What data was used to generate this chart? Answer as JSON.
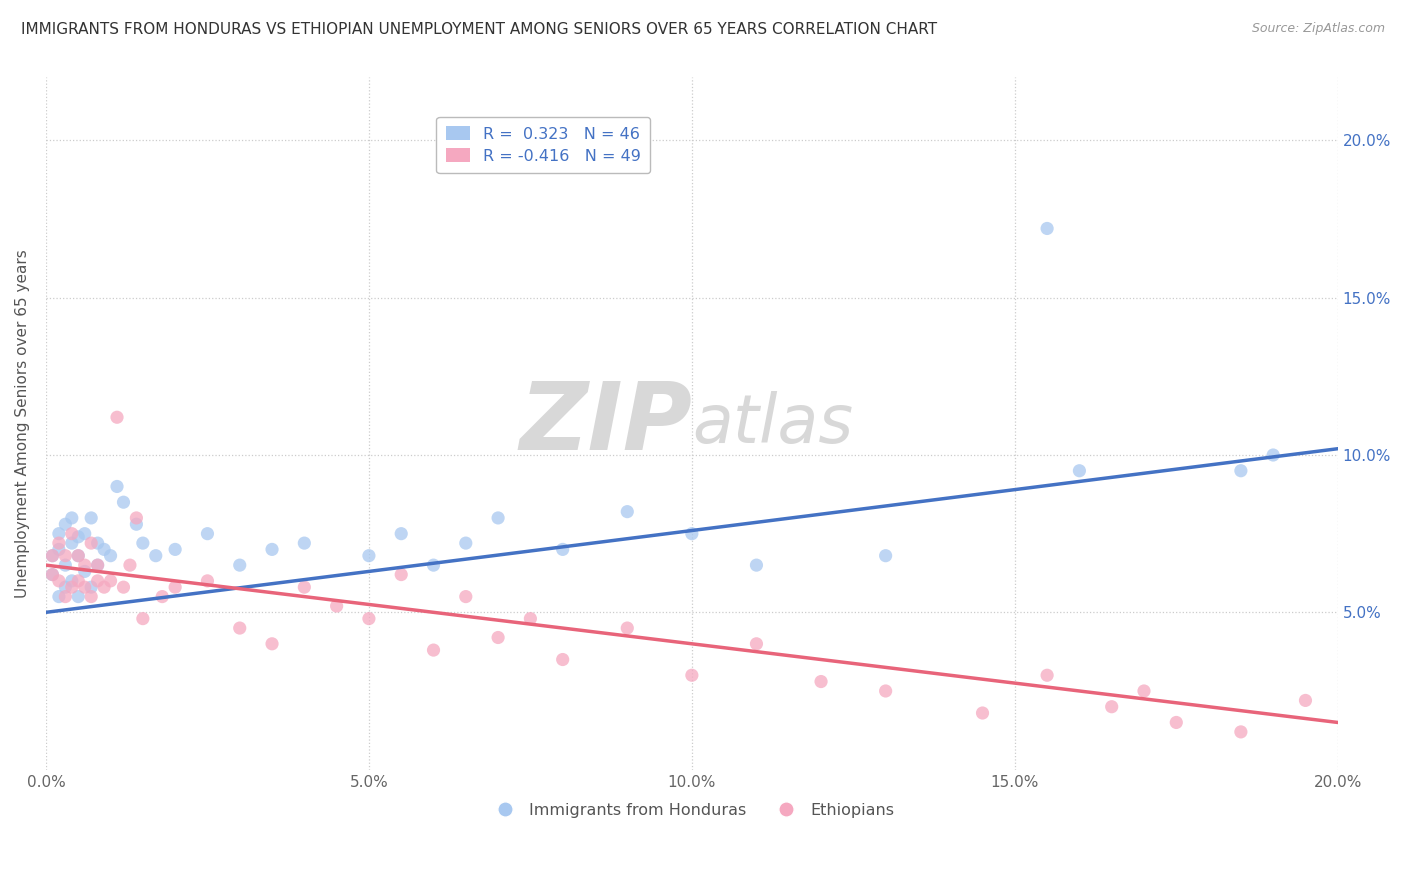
{
  "title": "IMMIGRANTS FROM HONDURAS VS ETHIOPIAN UNEMPLOYMENT AMONG SENIORS OVER 65 YEARS CORRELATION CHART",
  "source": "Source: ZipAtlas.com",
  "ylabel": "Unemployment Among Seniors over 65 years",
  "xlabel": "",
  "blue_label": "Immigrants from Honduras",
  "pink_label": "Ethiopians",
  "blue_R": 0.323,
  "blue_N": 46,
  "pink_R": -0.416,
  "pink_N": 49,
  "blue_color": "#a8c8f0",
  "pink_color": "#f5a8c0",
  "blue_line_color": "#4472c4",
  "pink_line_color": "#e8647a",
  "xmin": 0.0,
  "xmax": 0.2,
  "ymin": 0.0,
  "ymax": 0.22,
  "blue_x": [
    0.001,
    0.001,
    0.002,
    0.002,
    0.002,
    0.003,
    0.003,
    0.003,
    0.004,
    0.004,
    0.004,
    0.005,
    0.005,
    0.005,
    0.006,
    0.006,
    0.007,
    0.007,
    0.008,
    0.008,
    0.009,
    0.01,
    0.011,
    0.012,
    0.014,
    0.015,
    0.017,
    0.02,
    0.025,
    0.03,
    0.035,
    0.04,
    0.05,
    0.055,
    0.06,
    0.065,
    0.07,
    0.08,
    0.09,
    0.1,
    0.11,
    0.13,
    0.155,
    0.16,
    0.185,
    0.19
  ],
  "blue_y": [
    0.062,
    0.068,
    0.055,
    0.07,
    0.075,
    0.058,
    0.065,
    0.078,
    0.06,
    0.072,
    0.08,
    0.055,
    0.068,
    0.074,
    0.063,
    0.075,
    0.058,
    0.08,
    0.065,
    0.072,
    0.07,
    0.068,
    0.09,
    0.085,
    0.078,
    0.072,
    0.068,
    0.07,
    0.075,
    0.065,
    0.07,
    0.072,
    0.068,
    0.075,
    0.065,
    0.072,
    0.08,
    0.07,
    0.082,
    0.075,
    0.065,
    0.068,
    0.172,
    0.095,
    0.095,
    0.1
  ],
  "pink_x": [
    0.001,
    0.001,
    0.002,
    0.002,
    0.003,
    0.003,
    0.004,
    0.004,
    0.005,
    0.005,
    0.006,
    0.006,
    0.007,
    0.007,
    0.008,
    0.008,
    0.009,
    0.01,
    0.011,
    0.012,
    0.013,
    0.014,
    0.015,
    0.018,
    0.02,
    0.025,
    0.03,
    0.035,
    0.04,
    0.045,
    0.05,
    0.055,
    0.06,
    0.065,
    0.07,
    0.075,
    0.08,
    0.09,
    0.1,
    0.11,
    0.12,
    0.13,
    0.145,
    0.155,
    0.165,
    0.17,
    0.175,
    0.185,
    0.195
  ],
  "pink_y": [
    0.062,
    0.068,
    0.06,
    0.072,
    0.055,
    0.068,
    0.058,
    0.075,
    0.06,
    0.068,
    0.058,
    0.065,
    0.055,
    0.072,
    0.06,
    0.065,
    0.058,
    0.06,
    0.112,
    0.058,
    0.065,
    0.08,
    0.048,
    0.055,
    0.058,
    0.06,
    0.045,
    0.04,
    0.058,
    0.052,
    0.048,
    0.062,
    0.038,
    0.055,
    0.042,
    0.048,
    0.035,
    0.045,
    0.03,
    0.04,
    0.028,
    0.025,
    0.018,
    0.03,
    0.02,
    0.025,
    0.015,
    0.012,
    0.022
  ],
  "blue_line_x0": 0.0,
  "blue_line_y0": 0.05,
  "blue_line_x1": 0.2,
  "blue_line_y1": 0.102,
  "pink_line_x0": 0.0,
  "pink_line_y0": 0.065,
  "pink_line_x1": 0.2,
  "pink_line_y1": 0.015
}
